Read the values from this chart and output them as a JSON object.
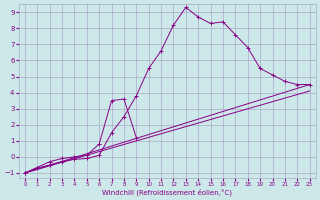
{
  "xlabel": "Windchill (Refroidissement éolien,°C)",
  "background_color": "#cce8e8",
  "grid_color": "#aaaacc",
  "line_color": "#880088",
  "xlim": [
    -0.5,
    23.5
  ],
  "ylim": [
    -1.3,
    9.5
  ],
  "xticks": [
    0,
    1,
    2,
    3,
    4,
    5,
    6,
    7,
    8,
    9,
    10,
    11,
    12,
    13,
    14,
    15,
    16,
    17,
    18,
    19,
    20,
    21,
    22,
    23
  ],
  "yticks": [
    -1,
    0,
    1,
    2,
    3,
    4,
    5,
    6,
    7,
    8,
    9
  ],
  "curves": [
    {
      "x": [
        0,
        1,
        2,
        3,
        4,
        5,
        6,
        7,
        8,
        9,
        10,
        11,
        12,
        13,
        14,
        15,
        16,
        17,
        18,
        19,
        20,
        21,
        22,
        23
      ],
      "y": [
        -1.0,
        -0.7,
        -0.5,
        -0.3,
        -0.15,
        -0.1,
        0.1,
        1.5,
        2.5,
        3.8,
        5.5,
        6.6,
        8.2,
        9.3,
        8.7,
        8.3,
        8.4,
        7.6,
        6.8,
        5.5,
        5.1,
        4.7,
        4.5,
        4.5
      ],
      "marker": true
    },
    {
      "x": [
        0,
        2,
        3,
        4,
        5,
        6,
        7,
        8,
        9
      ],
      "y": [
        -1.0,
        -0.3,
        -0.1,
        0.0,
        0.1,
        0.8,
        3.5,
        3.6,
        1.2
      ],
      "marker": true
    },
    {
      "x": [
        0,
        23
      ],
      "y": [
        -1.0,
        4.5
      ],
      "marker": false
    },
    {
      "x": [
        0,
        23
      ],
      "y": [
        -1.0,
        4.1
      ],
      "marker": false
    }
  ]
}
